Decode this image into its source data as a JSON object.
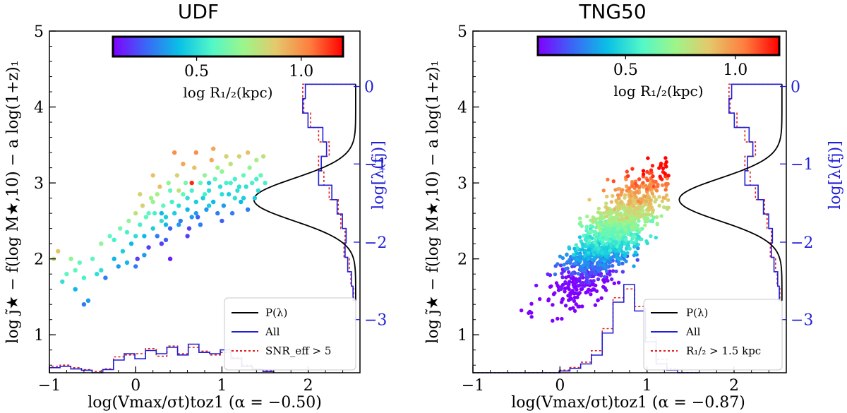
{
  "figure": {
    "shared_ylabel": "log j̃★ − f(log M★,10) − a log(1+z)₁"
  },
  "colorbar": {
    "label": "log R₁/₂(kpc)",
    "ticks": [
      "0.5",
      "1.0"
    ],
    "tick_values": [
      0.5,
      1.0
    ],
    "range": [
      0.1,
      1.2
    ],
    "colormap": "rainbow",
    "stops": [
      "#8000ff",
      "#3c64f6",
      "#0ac1e6",
      "#52f7c8",
      "#9ef58a",
      "#e5c86b",
      "#ff7b3d",
      "#ff0000"
    ]
  },
  "chart_data": [
    {
      "type": "scatter",
      "title": "UDF",
      "xlabel": "log(Vmax/σt)toz1 (α = −0.50)",
      "ylabel": "log j̃★ − f(log M★,10) − a log(1+z)₁",
      "right_ylabel": "log[λ(fj)]",
      "xlim": [
        -1,
        2.6
      ],
      "ylim": [
        0.5,
        5
      ],
      "xticks": [
        "−1",
        "0",
        "1",
        "2"
      ],
      "xtick_values": [
        -1,
        0,
        1,
        2
      ],
      "yticks": [
        "1",
        "2",
        "3",
        "4",
        "5"
      ],
      "ytick_values": [
        1,
        2,
        3,
        4,
        5
      ],
      "right_ticks": [
        "0",
        "−1",
        "−2",
        "−3"
      ],
      "right_tick_values": [
        0,
        -1,
        -2,
        -3
      ],
      "right_tick_positions_y": [
        4.27,
        3.25,
        2.22,
        1.2
      ],
      "gaussian_curve": {
        "center_y": 2.78,
        "sigma": 0.28,
        "peak_x": 1.37,
        "base_x": 2.55
      },
      "legend": [
        "P(λ)",
        "All",
        "SNR_eff > 5"
      ],
      "legend_location": "lower-right",
      "points": [
        [
          -0.95,
          2.0,
          0.8
        ],
        [
          -0.9,
          2.1,
          0.9
        ],
        [
          -0.85,
          1.7,
          0.5
        ],
        [
          -0.8,
          1.8,
          0.6
        ],
        [
          -0.75,
          2.0,
          0.7
        ],
        [
          -0.7,
          1.6,
          0.4
        ],
        [
          -0.65,
          1.95,
          0.6
        ],
        [
          -0.6,
          1.4,
          0.3
        ],
        [
          -0.55,
          1.45,
          0.35
        ],
        [
          -0.5,
          2.0,
          0.6
        ],
        [
          -0.45,
          1.8,
          0.5
        ],
        [
          -0.4,
          2.2,
          0.7
        ],
        [
          -0.35,
          1.75,
          0.3
        ],
        [
          -0.3,
          2.3,
          0.6
        ],
        [
          -0.25,
          2.0,
          0.4
        ],
        [
          -0.2,
          1.9,
          0.35
        ],
        [
          -0.18,
          2.4,
          0.65
        ],
        [
          -0.15,
          2.1,
          0.45
        ],
        [
          -0.1,
          1.95,
          0.4
        ],
        [
          -0.08,
          2.5,
          0.7
        ],
        [
          -0.05,
          2.2,
          0.4
        ],
        [
          0.0,
          2.6,
          0.8
        ],
        [
          0.0,
          2.3,
          0.5
        ],
        [
          0.02,
          2.0,
          0.2
        ],
        [
          0.05,
          2.45,
          0.55
        ],
        [
          0.08,
          2.7,
          0.85
        ],
        [
          0.1,
          2.3,
          0.4
        ],
        [
          0.12,
          2.55,
          0.6
        ],
        [
          0.15,
          2.15,
          0.2
        ],
        [
          0.18,
          2.8,
          0.75
        ],
        [
          0.2,
          2.4,
          0.45
        ],
        [
          0.22,
          2.6,
          0.55
        ],
        [
          0.25,
          2.3,
          0.3
        ],
        [
          0.28,
          2.95,
          0.9
        ],
        [
          0.3,
          2.5,
          0.5
        ],
        [
          0.32,
          2.7,
          0.6
        ],
        [
          0.35,
          2.55,
          0.45
        ],
        [
          0.38,
          3.0,
          0.7
        ],
        [
          0.4,
          2.4,
          0.25
        ],
        [
          0.42,
          2.75,
          0.55
        ],
        [
          0.45,
          2.6,
          0.45
        ],
        [
          0.48,
          3.1,
          0.85
        ],
        [
          0.5,
          2.7,
          0.5
        ],
        [
          0.52,
          2.5,
          0.3
        ],
        [
          0.55,
          2.85,
          0.6
        ],
        [
          0.58,
          3.0,
          0.65
        ],
        [
          0.6,
          2.65,
          0.4
        ],
        [
          0.62,
          2.4,
          0.2
        ],
        [
          0.65,
          2.9,
          0.55
        ],
        [
          0.68,
          3.2,
          0.9
        ],
        [
          0.7,
          2.75,
          0.45
        ],
        [
          0.72,
          2.55,
          0.25
        ],
        [
          0.75,
          3.0,
          0.6
        ],
        [
          0.78,
          2.8,
          0.45
        ],
        [
          0.8,
          3.1,
          0.7
        ],
        [
          0.82,
          2.65,
          0.35
        ],
        [
          0.85,
          2.9,
          0.5
        ],
        [
          0.88,
          3.3,
          0.95
        ],
        [
          0.9,
          2.75,
          0.4
        ],
        [
          0.92,
          3.05,
          0.6
        ],
        [
          0.95,
          2.6,
          0.3
        ],
        [
          0.98,
          2.95,
          0.5
        ],
        [
          1.0,
          3.15,
          0.7
        ],
        [
          1.02,
          2.7,
          0.35
        ],
        [
          1.05,
          3.0,
          0.55
        ],
        [
          1.08,
          2.85,
          0.45
        ],
        [
          1.1,
          3.25,
          0.8
        ],
        [
          1.12,
          2.6,
          0.3
        ],
        [
          1.15,
          3.05,
          0.55
        ],
        [
          1.18,
          2.9,
          0.5
        ],
        [
          1.2,
          3.35,
          0.85
        ],
        [
          1.22,
          2.75,
          0.4
        ],
        [
          1.25,
          3.1,
          0.6
        ],
        [
          1.28,
          2.95,
          0.5
        ],
        [
          1.3,
          2.65,
          0.3
        ],
        [
          1.32,
          3.2,
          0.7
        ],
        [
          1.35,
          3.0,
          0.55
        ],
        [
          1.38,
          2.8,
          0.45
        ],
        [
          1.4,
          3.3,
          0.75
        ],
        [
          1.42,
          2.9,
          0.5
        ],
        [
          1.45,
          3.1,
          0.6
        ],
        [
          1.48,
          3.35,
          0.8
        ],
        [
          1.5,
          3.0,
          0.55
        ],
        [
          0.3,
          2.2,
          0.2
        ],
        [
          0.4,
          2.0,
          0.15
        ],
        [
          0.6,
          2.3,
          0.2
        ],
        [
          0.5,
          2.9,
          0.8
        ],
        [
          0.7,
          3.4,
          1.0
        ],
        [
          0.85,
          3.0,
          0.45
        ],
        [
          1.0,
          2.5,
          0.25
        ],
        [
          0.15,
          2.6,
          0.6
        ],
        [
          0.25,
          2.85,
          0.75
        ],
        [
          0.35,
          2.25,
          0.25
        ],
        [
          0.55,
          3.25,
          0.95
        ],
        [
          0.75,
          2.45,
          0.3
        ],
        [
          0.95,
          3.2,
          0.75
        ],
        [
          1.15,
          2.8,
          0.5
        ],
        [
          1.3,
          3.4,
          0.9
        ],
        [
          0.05,
          2.85,
          0.85
        ],
        [
          0.2,
          3.1,
          0.9
        ],
        [
          0.45,
          3.4,
          1.0
        ],
        [
          0.65,
          3.0,
          1.15
        ],
        [
          0.9,
          3.45,
          0.95
        ],
        [
          1.05,
          3.35,
          0.85
        ],
        [
          -0.1,
          2.35,
          0.55
        ],
        [
          0.0,
          1.9,
          0.3
        ],
        [
          0.1,
          2.05,
          0.35
        ],
        [
          0.3,
          2.6,
          0.4
        ],
        [
          0.5,
          2.45,
          0.35
        ],
        [
          0.7,
          2.6,
          0.35
        ],
        [
          0.8,
          2.85,
          0.55
        ],
        [
          1.1,
          3.0,
          0.55
        ],
        [
          1.2,
          2.95,
          0.5
        ],
        [
          1.4,
          3.05,
          0.55
        ],
        [
          0.6,
          2.8,
          0.5
        ],
        [
          0.4,
          2.9,
          0.6
        ],
        [
          0.2,
          2.75,
          0.7
        ],
        [
          0.35,
          2.45,
          0.4
        ],
        [
          0.65,
          2.55,
          0.35
        ],
        [
          0.85,
          2.7,
          0.45
        ],
        [
          1.0,
          2.85,
          0.5
        ],
        [
          1.25,
          2.8,
          0.45
        ],
        [
          -0.25,
          2.25,
          0.55
        ],
        [
          -0.4,
          1.85,
          0.5
        ],
        [
          -0.7,
          1.85,
          0.6
        ],
        [
          -0.6,
          1.75,
          0.55
        ]
      ]
    },
    {
      "type": "scatter",
      "title": "TNG50",
      "xlabel": "log(Vmax/σt)toz1 (α = −0.87)",
      "ylabel": "log j̃★ − f(log M★,10) − a log(1+z)₁",
      "right_ylabel": "log[λ(fj)]",
      "xlim": [
        -1,
        2.6
      ],
      "ylim": [
        0.5,
        5
      ],
      "xticks": [
        "−1",
        "0",
        "1",
        "2"
      ],
      "xtick_values": [
        -1,
        0,
        1,
        2
      ],
      "yticks": [
        "1",
        "2",
        "3",
        "4",
        "5"
      ],
      "ytick_values": [
        1,
        2,
        3,
        4,
        5
      ],
      "right_ticks": [
        "0",
        "−1",
        "−2",
        "−3"
      ],
      "right_tick_values": [
        0,
        -1,
        -2,
        -3
      ],
      "right_tick_positions_y": [
        4.27,
        3.25,
        2.22,
        1.2
      ],
      "gaussian_curve": {
        "center_y": 2.78,
        "sigma": 0.28,
        "peak_x": 1.37,
        "base_x": 2.55
      },
      "legend": [
        "P(λ)",
        "All",
        "R₁/₂ > 1.5 kpc"
      ],
      "legend_location": "lower-right",
      "cloud": {
        "count": 1400,
        "center": [
          0.6,
          2.3
        ],
        "slope": 1.1,
        "spread_x": 0.3,
        "spread_y": 0.32
      }
    }
  ]
}
